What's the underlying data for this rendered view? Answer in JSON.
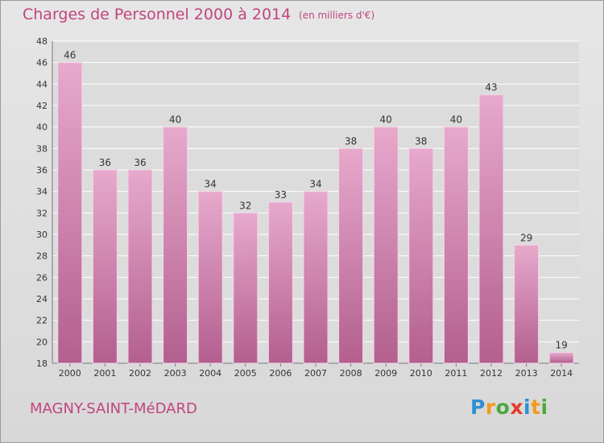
{
  "chart_data": {
    "type": "bar",
    "title": "Charges de Personnel 2000 à 2014",
    "subtitle": "(en milliers d'€)",
    "categories": [
      "2000",
      "2001",
      "2002",
      "2003",
      "2004",
      "2005",
      "2006",
      "2007",
      "2008",
      "2009",
      "2010",
      "2011",
      "2012",
      "2013",
      "2014"
    ],
    "values": [
      46,
      36,
      36,
      40,
      34,
      32,
      33,
      34,
      38,
      40,
      38,
      40,
      43,
      29,
      19
    ],
    "ylim": [
      18,
      48
    ],
    "yticks": [
      18,
      20,
      22,
      24,
      26,
      28,
      30,
      32,
      34,
      36,
      38,
      40,
      42,
      44,
      46,
      48
    ],
    "grid": true,
    "bar_color": "#d48bb5",
    "text_color": "#c0457e"
  },
  "footer": {
    "place": "MAGNY-SAINT-MéDARD",
    "logo_letters": [
      {
        "ch": "P",
        "color": "#2f8fd0"
      },
      {
        "ch": "r",
        "color": "#f29a1c"
      },
      {
        "ch": "o",
        "color": "#4aa83e"
      },
      {
        "ch": "x",
        "color": "#e63b2e"
      },
      {
        "ch": "i",
        "color": "#2f8fd0"
      },
      {
        "ch": "t",
        "color": "#f29a1c"
      },
      {
        "ch": "i",
        "color": "#4aa83e"
      }
    ]
  }
}
